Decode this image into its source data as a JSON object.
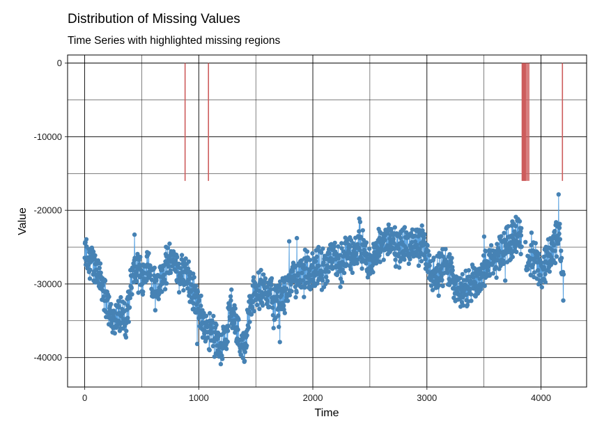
{
  "chart_data": {
    "type": "line",
    "title": "Distribution of Missing Values",
    "subtitle": "Time Series with highlighted missing regions",
    "xlabel": "Time",
    "ylabel": "Value",
    "xlim": [
      -150,
      4400
    ],
    "ylim": [
      -44000,
      1100
    ],
    "x_ticks": [
      0,
      1000,
      2000,
      3000,
      4000
    ],
    "x_tick_labels": [
      "0",
      "1000",
      "2000",
      "3000",
      "4000"
    ],
    "y_ticks": [
      0,
      -10000,
      -20000,
      -30000,
      -40000
    ],
    "y_tick_labels": [
      "0",
      "-10000",
      "-20000",
      "-30000",
      "-40000"
    ],
    "grid": true,
    "legend": "none",
    "colors": {
      "line": "#56a0e0",
      "points": "#4682b4",
      "missing": "#cd5c5c",
      "grid": "#000000"
    },
    "missing_band": {
      "y_top": 0,
      "y_bottom": -16000
    },
    "missing_positions": [
      880,
      1085,
      3835,
      3842,
      3848,
      3855,
      3861,
      3868,
      3880,
      3893,
      4188
    ],
    "series": [
      {
        "values_note_free": true,
        "x": [
          0,
          40,
          80,
          120,
          160,
          200,
          240,
          280,
          320,
          360,
          400,
          440,
          480,
          520,
          560,
          600,
          640,
          680,
          720,
          760,
          800,
          840,
          880,
          920,
          960,
          1000,
          1040,
          1080,
          1120,
          1160,
          1200,
          1240,
          1280,
          1320,
          1360,
          1400,
          1440,
          1480,
          1520,
          1560,
          1600,
          1640,
          1680,
          1720,
          1760,
          1800,
          1840,
          1880,
          1920,
          1960,
          2000,
          2040,
          2080,
          2120,
          2160,
          2200,
          2240,
          2280,
          2320,
          2360,
          2400,
          2440,
          2480,
          2520,
          2560,
          2600,
          2640,
          2680,
          2720,
          2760,
          2800,
          2840,
          2880,
          2920,
          2960,
          3000,
          3040,
          3080,
          3120,
          3160,
          3200,
          3240,
          3280,
          3320,
          3360,
          3400,
          3440,
          3480,
          3520,
          3560,
          3600,
          3640,
          3680,
          3720,
          3760,
          3800,
          3840,
          3880,
          3920,
          3960,
          4000,
          4040,
          4080,
          4120,
          4160,
          4200
        ],
        "values": [
          -25500,
          -26500,
          -27500,
          -28500,
          -30000,
          -33000,
          -35000,
          -34500,
          -33500,
          -36000,
          -30000,
          -28000,
          -28500,
          -29000,
          -27000,
          -29500,
          -30500,
          -28500,
          -27500,
          -26500,
          -27500,
          -29000,
          -28000,
          -30000,
          -31500,
          -33000,
          -35500,
          -37000,
          -36500,
          -38000,
          -39000,
          -36500,
          -33000,
          -35000,
          -37500,
          -39000,
          -34000,
          -31500,
          -30500,
          -31000,
          -30500,
          -31500,
          -33000,
          -32000,
          -31000,
          -30000,
          -29000,
          -28500,
          -29500,
          -28500,
          -28000,
          -27500,
          -28500,
          -27500,
          -27000,
          -26500,
          -27500,
          -26000,
          -25500,
          -26500,
          -25000,
          -25500,
          -27000,
          -26500,
          -26000,
          -24500,
          -24000,
          -23500,
          -25000,
          -25500,
          -24500,
          -25000,
          -24500,
          -25000,
          -24500,
          -26000,
          -28500,
          -29000,
          -28000,
          -27500,
          -28500,
          -29500,
          -30500,
          -31500,
          -31000,
          -29500,
          -30000,
          -28500,
          -27500,
          -27000,
          -26500,
          -25500,
          -25000,
          -24500,
          -23500,
          -22500,
          -24500,
          -27500,
          -27000,
          -26500,
          -28000,
          -27500,
          -26000,
          -24500,
          -23000,
          -30500
        ]
      }
    ]
  }
}
